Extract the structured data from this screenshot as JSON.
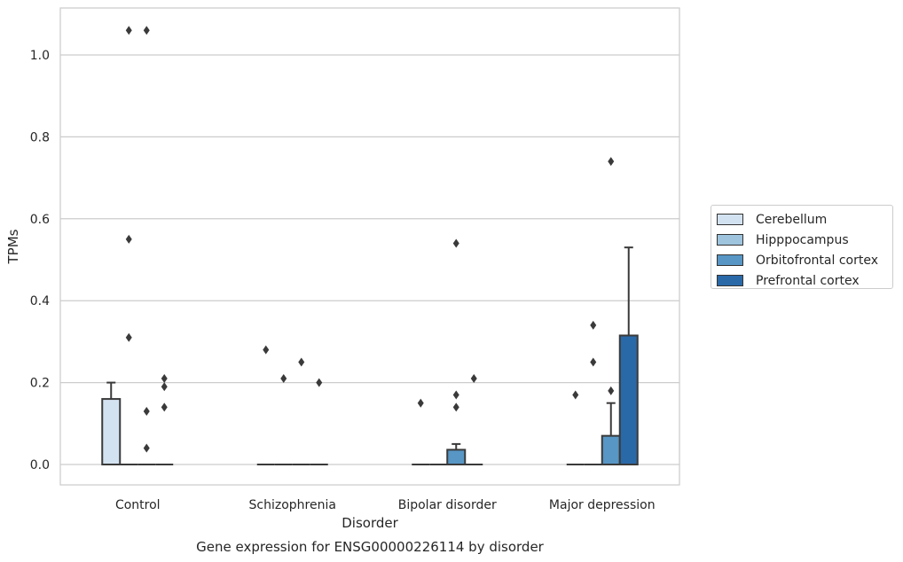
{
  "chart_data": {
    "type": "box",
    "title": "Gene expression for ENSG00000226114 by disorder",
    "xlabel": "Disorder",
    "ylabel": "TPMs",
    "categories": [
      "Control",
      "Schizophrenia",
      "Bipolar disorder",
      "Major depression"
    ],
    "yticks": [
      "0.0",
      "0.2",
      "0.4",
      "0.6",
      "0.8",
      "1.0"
    ],
    "ylim": [
      -0.05,
      1.11
    ],
    "grid": true,
    "legend_position": "right",
    "series": [
      {
        "name": "Cerebellum",
        "color": "#d3e2f0",
        "boxes": [
          {
            "q1": 0,
            "median": 0,
            "q3": 0.16,
            "whisker_low": 0,
            "whisker_high": 0.2,
            "outliers": []
          },
          {
            "q1": 0,
            "median": 0,
            "q3": 0,
            "whisker_low": 0,
            "whisker_high": 0,
            "outliers": [
              0.28
            ]
          },
          {
            "q1": 0,
            "median": 0,
            "q3": 0,
            "whisker_low": 0,
            "whisker_high": 0,
            "outliers": [
              0.15
            ]
          },
          {
            "q1": 0,
            "median": 0,
            "q3": 0,
            "whisker_low": 0,
            "whisker_high": 0,
            "outliers": [
              0.17
            ]
          }
        ]
      },
      {
        "name": "Hipppocampus",
        "color": "#9ec4de",
        "boxes": [
          {
            "q1": 0,
            "median": 0,
            "q3": 0,
            "whisker_low": 0,
            "whisker_high": 0,
            "outliers": [
              0.55,
              0.31,
              1.06
            ]
          },
          {
            "q1": 0,
            "median": 0,
            "q3": 0,
            "whisker_low": 0,
            "whisker_high": 0,
            "outliers": [
              0.21
            ]
          },
          {
            "q1": 0,
            "median": 0,
            "q3": 0,
            "whisker_low": 0,
            "whisker_high": 0,
            "outliers": []
          },
          {
            "q1": 0,
            "median": 0,
            "q3": 0,
            "whisker_low": 0,
            "whisker_high": 0,
            "outliers": [
              0.34,
              0.25
            ]
          }
        ]
      },
      {
        "name": "Orbitofrontal cortex",
        "color": "#5796c5",
        "boxes": [
          {
            "q1": 0,
            "median": 0,
            "q3": 0,
            "whisker_low": 0,
            "whisker_high": 0,
            "outliers": [
              1.06,
              0.13,
              0.04
            ]
          },
          {
            "q1": 0,
            "median": 0,
            "q3": 0,
            "whisker_low": 0,
            "whisker_high": 0,
            "outliers": [
              0.25
            ]
          },
          {
            "q1": 0,
            "median": 0,
            "q3": 0.036,
            "whisker_low": 0,
            "whisker_high": 0.05,
            "outliers": [
              0.54,
              0.17,
              0.14
            ]
          },
          {
            "q1": 0,
            "median": 0,
            "q3": 0.07,
            "whisker_low": 0,
            "whisker_high": 0.15,
            "outliers": [
              0.74,
              0.18
            ]
          }
        ]
      },
      {
        "name": "Prefrontal cortex",
        "color": "#2a69a8",
        "boxes": [
          {
            "q1": 0,
            "median": 0,
            "q3": 0,
            "whisker_low": 0,
            "whisker_high": 0,
            "outliers": [
              0.21,
              0.19,
              0.14
            ]
          },
          {
            "q1": 0,
            "median": 0,
            "q3": 0,
            "whisker_low": 0,
            "whisker_high": 0,
            "outliers": [
              0.2
            ]
          },
          {
            "q1": 0,
            "median": 0,
            "q3": 0,
            "whisker_low": 0,
            "whisker_high": 0,
            "outliers": [
              0.21
            ]
          },
          {
            "q1": 0,
            "median": 0,
            "q3": 0.315,
            "whisker_low": 0,
            "whisker_high": 0.53,
            "outliers": []
          }
        ]
      }
    ]
  }
}
